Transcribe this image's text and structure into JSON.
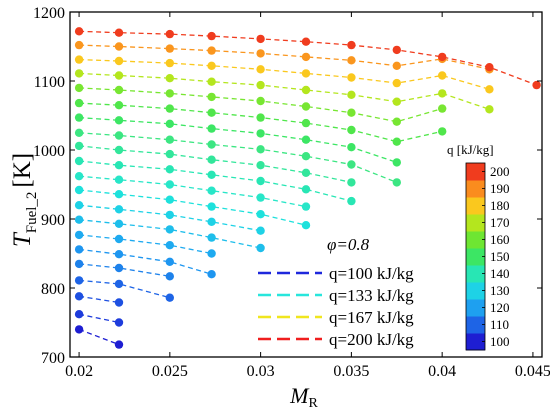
{
  "chart_data": {
    "type": "scatter",
    "xlim": [
      0.0195,
      0.0455
    ],
    "ylim": [
      700,
      1200
    ],
    "x_ticks": [
      0.02,
      0.025,
      0.03,
      0.035,
      0.04,
      0.045
    ],
    "x_tick_labels": [
      "0.02",
      "0.025",
      "0.03",
      "0.035",
      "0.04",
      "0.045"
    ],
    "y_ticks": [
      700,
      800,
      900,
      1000,
      1100,
      1200
    ],
    "y_tick_labels": [
      "700",
      "800",
      "900",
      "1000",
      "1100",
      "1200"
    ],
    "xlabel": {
      "main": "M",
      "sub": "R"
    },
    "ylabel": {
      "main": "T",
      "sub": "Fuel_2",
      "unit": "[K]"
    },
    "annotation": "φ=0.8",
    "colorbar": {
      "title": "q [kJ/kg]",
      "min": 95,
      "max": 205,
      "ticks": [
        100,
        110,
        120,
        130,
        140,
        150,
        160,
        170,
        180,
        190,
        200
      ],
      "colors": [
        "#1e1ed2",
        "#1e64e6",
        "#1ea0f0",
        "#1ed2e6",
        "#28e6b4",
        "#3ce664",
        "#6ee632",
        "#b4e61e",
        "#fac81e",
        "#fa8c1e",
        "#f03c1e"
      ]
    },
    "legend": {
      "position": "lower-right",
      "entries": [
        {
          "label": "q=100 kJ/kg",
          "color": "#1e28dc"
        },
        {
          "label": "q=133 kJ/kg",
          "color": "#28e6dc"
        },
        {
          "label": "q=167 kJ/kg",
          "color": "#f0e61e"
        },
        {
          "label": "q=200 kJ/kg",
          "color": "#f01e1e"
        }
      ]
    },
    "series": [
      {
        "q": 100,
        "color": "#1e1ed2",
        "points": [
          [
            0.02,
            740
          ],
          [
            0.0222,
            718
          ]
        ]
      },
      {
        "q": 103,
        "color": "#1e3cdc",
        "points": [
          [
            0.02,
            762
          ],
          [
            0.0222,
            750
          ]
        ]
      },
      {
        "q": 106,
        "color": "#1e50e1",
        "points": [
          [
            0.02,
            788
          ],
          [
            0.0222,
            779
          ]
        ]
      },
      {
        "q": 109,
        "color": "#1e64e6",
        "points": [
          [
            0.02,
            811
          ],
          [
            0.0222,
            806
          ],
          [
            0.025,
            786
          ]
        ]
      },
      {
        "q": 113,
        "color": "#1e82eb",
        "points": [
          [
            0.02,
            835
          ],
          [
            0.0222,
            829
          ],
          [
            0.025,
            817
          ]
        ]
      },
      {
        "q": 116,
        "color": "#1e96f0",
        "points": [
          [
            0.02,
            856
          ],
          [
            0.0222,
            849
          ],
          [
            0.025,
            838
          ],
          [
            0.0273,
            820
          ]
        ]
      },
      {
        "q": 119,
        "color": "#1eaaf0",
        "points": [
          [
            0.02,
            877
          ],
          [
            0.0222,
            871
          ],
          [
            0.025,
            862
          ],
          [
            0.0273,
            850
          ]
        ]
      },
      {
        "q": 123,
        "color": "#1ebeeb",
        "points": [
          [
            0.02,
            899
          ],
          [
            0.0222,
            893
          ],
          [
            0.025,
            885
          ],
          [
            0.0273,
            873
          ],
          [
            0.03,
            858
          ]
        ]
      },
      {
        "q": 126,
        "color": "#1ed2e6",
        "points": [
          [
            0.02,
            920
          ],
          [
            0.0222,
            914
          ],
          [
            0.025,
            906
          ],
          [
            0.0273,
            896
          ],
          [
            0.03,
            883
          ]
        ]
      },
      {
        "q": 129,
        "color": "#1ee1dc",
        "points": [
          [
            0.02,
            942
          ],
          [
            0.0222,
            936
          ],
          [
            0.025,
            928
          ],
          [
            0.0273,
            918
          ],
          [
            0.03,
            907
          ],
          [
            0.0325,
            891
          ]
        ]
      },
      {
        "q": 133,
        "color": "#28e6c8",
        "points": [
          [
            0.02,
            962
          ],
          [
            0.0222,
            957
          ],
          [
            0.025,
            950
          ],
          [
            0.0273,
            941
          ],
          [
            0.03,
            931
          ],
          [
            0.0325,
            918
          ]
        ]
      },
      {
        "q": 136,
        "color": "#28e6b4",
        "points": [
          [
            0.02,
            984
          ],
          [
            0.0222,
            978
          ],
          [
            0.025,
            972
          ],
          [
            0.0273,
            964
          ],
          [
            0.03,
            955
          ],
          [
            0.0325,
            943
          ],
          [
            0.035,
            926
          ]
        ]
      },
      {
        "q": 139,
        "color": "#32e69b",
        "points": [
          [
            0.02,
            1006
          ],
          [
            0.0222,
            1000
          ],
          [
            0.025,
            994
          ],
          [
            0.0273,
            986
          ],
          [
            0.03,
            978
          ],
          [
            0.0325,
            967
          ],
          [
            0.035,
            953
          ]
        ]
      },
      {
        "q": 143,
        "color": "#3ce682",
        "points": [
          [
            0.02,
            1025
          ],
          [
            0.0222,
            1021
          ],
          [
            0.025,
            1015
          ],
          [
            0.0273,
            1008
          ],
          [
            0.03,
            1001
          ],
          [
            0.0325,
            991
          ],
          [
            0.035,
            979
          ],
          [
            0.0375,
            953
          ]
        ]
      },
      {
        "q": 146,
        "color": "#3ce664",
        "points": [
          [
            0.02,
            1047
          ],
          [
            0.0222,
            1043
          ],
          [
            0.025,
            1038
          ],
          [
            0.0273,
            1031
          ],
          [
            0.03,
            1024
          ],
          [
            0.0325,
            1015
          ],
          [
            0.035,
            1004
          ],
          [
            0.0375,
            982
          ]
        ]
      },
      {
        "q": 150,
        "color": "#50e64b",
        "points": [
          [
            0.02,
            1068
          ],
          [
            0.0222,
            1065
          ],
          [
            0.025,
            1060
          ],
          [
            0.0273,
            1054
          ],
          [
            0.03,
            1047
          ],
          [
            0.0325,
            1039
          ],
          [
            0.035,
            1029
          ],
          [
            0.0375,
            1012
          ],
          [
            0.04,
            1027
          ]
        ]
      },
      {
        "q": 157,
        "color": "#78e632",
        "points": [
          [
            0.02,
            1090
          ],
          [
            0.0222,
            1087
          ],
          [
            0.025,
            1082
          ],
          [
            0.0273,
            1077
          ],
          [
            0.03,
            1071
          ],
          [
            0.0325,
            1063
          ],
          [
            0.035,
            1054
          ],
          [
            0.0375,
            1041
          ],
          [
            0.04,
            1060
          ]
        ]
      },
      {
        "q": 166,
        "color": "#b4e61e",
        "points": [
          [
            0.02,
            1111
          ],
          [
            0.0222,
            1108
          ],
          [
            0.025,
            1104
          ],
          [
            0.0273,
            1099
          ],
          [
            0.03,
            1094
          ],
          [
            0.0325,
            1087
          ],
          [
            0.035,
            1080
          ],
          [
            0.0375,
            1070
          ],
          [
            0.04,
            1082
          ],
          [
            0.0426,
            1059
          ]
        ]
      },
      {
        "q": 178,
        "color": "#fac81e",
        "points": [
          [
            0.02,
            1131
          ],
          [
            0.0222,
            1129
          ],
          [
            0.025,
            1126
          ],
          [
            0.0273,
            1122
          ],
          [
            0.03,
            1117
          ],
          [
            0.0325,
            1111
          ],
          [
            0.035,
            1105
          ],
          [
            0.0375,
            1097
          ],
          [
            0.04,
            1108
          ],
          [
            0.0426,
            1088
          ]
        ]
      },
      {
        "q": 189,
        "color": "#fa961e",
        "points": [
          [
            0.02,
            1152
          ],
          [
            0.0222,
            1150
          ],
          [
            0.025,
            1147
          ],
          [
            0.0273,
            1144
          ],
          [
            0.03,
            1140
          ],
          [
            0.0325,
            1135
          ],
          [
            0.035,
            1130
          ],
          [
            0.0375,
            1122
          ],
          [
            0.04,
            1132
          ],
          [
            0.0426,
            1117
          ]
        ]
      },
      {
        "q": 200,
        "color": "#f03c1e",
        "points": [
          [
            0.02,
            1172
          ],
          [
            0.0222,
            1170
          ],
          [
            0.025,
            1168
          ],
          [
            0.0273,
            1165
          ],
          [
            0.03,
            1161
          ],
          [
            0.0325,
            1157
          ],
          [
            0.035,
            1152
          ],
          [
            0.0375,
            1145
          ],
          [
            0.04,
            1135
          ],
          [
            0.0426,
            1120
          ],
          [
            0.0452,
            1094
          ]
        ]
      }
    ]
  }
}
